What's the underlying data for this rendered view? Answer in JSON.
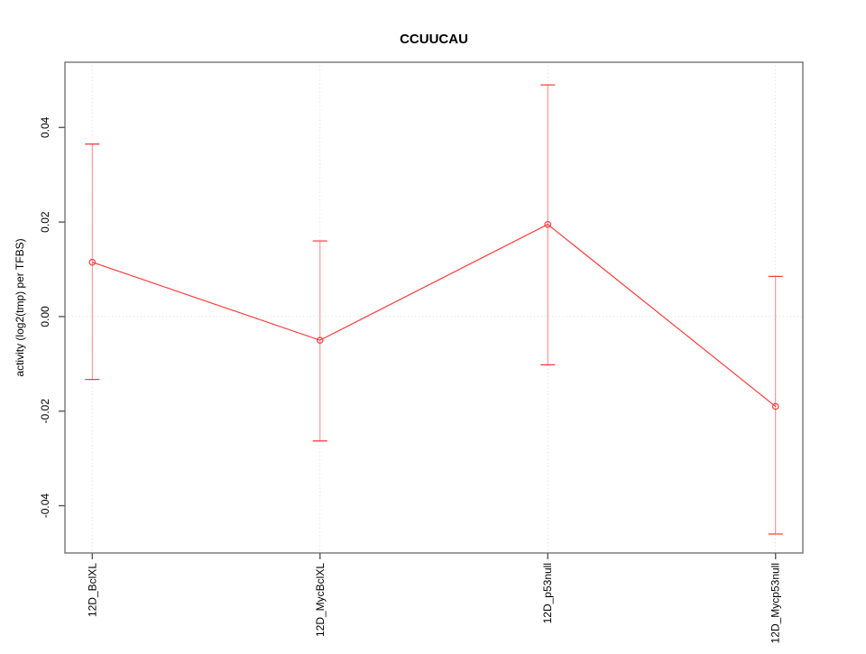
{
  "chart_data": {
    "type": "line",
    "title": "CCUUCAU",
    "xlabel": "",
    "ylabel": "activity (log2(tmp) per TFBS)",
    "categories": [
      "12D_BclXL",
      "12D_MycBclXL",
      "12D_p53null",
      "12D_Mycp53null"
    ],
    "series": [
      {
        "name": "activity",
        "values": [
          0.0115,
          -0.005,
          0.0195,
          -0.019
        ],
        "ci_upper": [
          0.0365,
          0.016,
          0.049,
          0.0085
        ],
        "ci_lower": [
          -0.0133,
          -0.0263,
          -0.0102,
          -0.046
        ]
      }
    ],
    "yticks": {
      "values": [
        0.04,
        0.02,
        0.0,
        -0.02,
        -0.04
      ],
      "labels": [
        "0.04",
        "0.02",
        "0.00",
        "-0.02",
        "-0.04"
      ]
    },
    "ylim": [
      -0.05,
      0.0538
    ],
    "xlim": [
      0.88,
      4.12
    ],
    "grid": {
      "vertical_dotted_at_categories": true,
      "horizontal_dotted_at_zero": true
    },
    "legend": "none",
    "marker": "open-circle",
    "colors": {
      "series_line": "#ff3b3b",
      "error_bar_line": "#ff8585",
      "error_bar_cap": "#ff4040",
      "marker_stroke": "#ff3b3b",
      "grid_line": "#dcdcdc",
      "axis_box": "#757575",
      "tick_mark": "#5a5a5a",
      "text": "#000000",
      "background": "#ffffff"
    }
  }
}
